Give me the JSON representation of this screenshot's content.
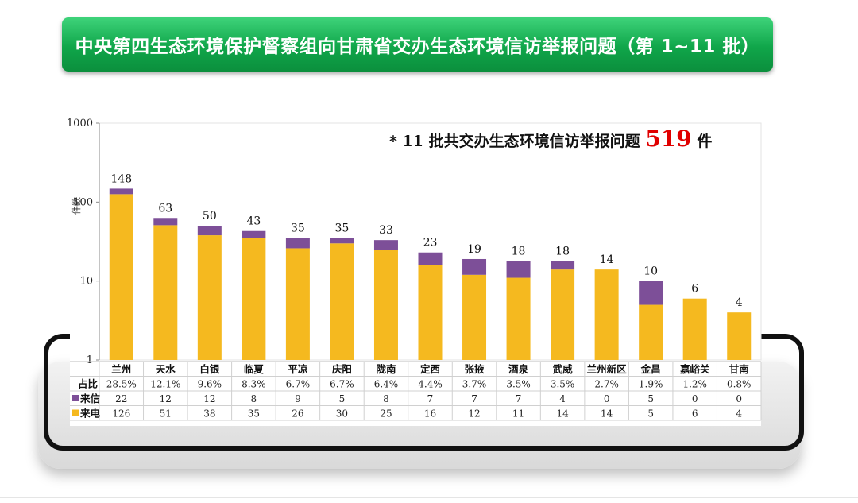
{
  "banner": {
    "title": "中央第四生态环境保护督察组向甘肃省交办生态环境信访举报问题（第 1~11 批）"
  },
  "summary": {
    "prefix": "* 11 批共交办生态环境信访举报问题",
    "total": "519",
    "suffix": "件"
  },
  "colors": {
    "banner": "#10a64a",
    "phone": "#f5b91f",
    "letter": "#7d4f98",
    "total": "#e00000"
  },
  "chart_data": {
    "type": "bar",
    "stacked": true,
    "yscale": "log",
    "ylabel": "件数",
    "ylim": [
      1,
      1000
    ],
    "yticks": [
      "1",
      "10",
      "100",
      "1000"
    ],
    "categories": [
      "兰州",
      "天水",
      "白银",
      "临夏",
      "平凉",
      "庆阳",
      "陇南",
      "定西",
      "张掖",
      "酒泉",
      "武威",
      "兰州新区",
      "金昌",
      "嘉峪关",
      "甘南"
    ],
    "totals": [
      148,
      63,
      50,
      43,
      35,
      35,
      33,
      23,
      19,
      18,
      18,
      14,
      10,
      6,
      4
    ],
    "series": [
      {
        "name": "来电",
        "values": [
          126,
          51,
          38,
          35,
          26,
          30,
          25,
          16,
          12,
          11,
          14,
          14,
          5,
          6,
          4
        ]
      },
      {
        "name": "来信",
        "values": [
          22,
          12,
          12,
          8,
          9,
          5,
          8,
          7,
          7,
          7,
          4,
          0,
          5,
          0,
          0
        ]
      }
    ],
    "table": {
      "rows": [
        {
          "label": "占比",
          "values": [
            "28.5%",
            "12.1%",
            "9.6%",
            "8.3%",
            "6.7%",
            "6.7%",
            "6.4%",
            "4.4%",
            "3.7%",
            "3.5%",
            "3.5%",
            "2.7%",
            "1.9%",
            "1.2%",
            "0.8%"
          ]
        },
        {
          "label": "来信",
          "values": [
            "22",
            "12",
            "12",
            "8",
            "9",
            "5",
            "8",
            "7",
            "7",
            "7",
            "4",
            "0",
            "5",
            "0",
            "0"
          ]
        },
        {
          "label": "来电",
          "values": [
            "126",
            "51",
            "38",
            "35",
            "26",
            "30",
            "25",
            "16",
            "12",
            "11",
            "14",
            "14",
            "5",
            "6",
            "4"
          ]
        }
      ]
    }
  }
}
